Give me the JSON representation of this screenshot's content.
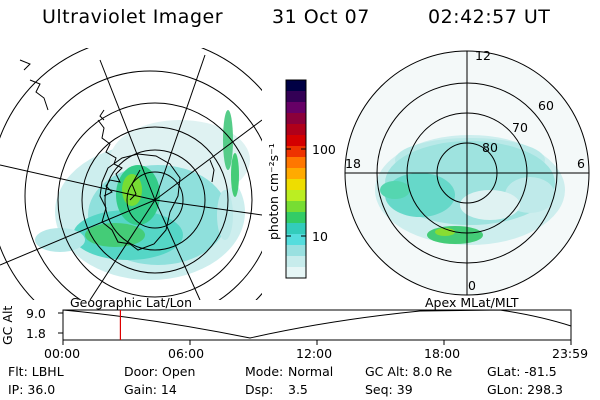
{
  "header": {
    "instrument": "Ultraviolet Imager",
    "date": "31 Oct 07",
    "time": "02:42:57 UT"
  },
  "colorbar": {
    "unit_label": "photon cm⁻²s⁻¹",
    "ticks": [
      "100",
      "10"
    ],
    "colors": [
      "#000044",
      "#330055",
      "#660066",
      "#8b003a",
      "#b0001a",
      "#d40000",
      "#ee3300",
      "#ff7700",
      "#ffaa00",
      "#eedd00",
      "#bbee22",
      "#77dd33",
      "#33cc66",
      "#33ccbb",
      "#55dddd",
      "#99e0e0",
      "#c7ecec",
      "#e6f6f6"
    ]
  },
  "right_map": {
    "mlt_labels": [
      "12",
      "18",
      "6",
      "0"
    ],
    "mlat_labels": [
      "60",
      "70",
      "80"
    ]
  },
  "timeline": {
    "y_axis_label": "GC Alt",
    "y_max": "9.0",
    "y_min": "1.8",
    "left_map_label": "Geographic Lat/Lon",
    "right_map_label": "Apex MLat/MLT",
    "x_ticks": [
      "00:00",
      "06:00",
      "12:00",
      "18:00",
      "23:59"
    ],
    "current_time_fraction": 0.113
  },
  "info": {
    "flt": "Flt: LBHL",
    "ip": "IP: 36.0",
    "door": "Door: Open",
    "gain": "Gain: 14",
    "mode_key": "Mode:",
    "mode_val": "Normal",
    "dsp_key": "Dsp:",
    "dsp_val": "3.5",
    "gcalt": "GC Alt: 8.0 Re",
    "seq": "Seq: 39",
    "glat": "GLat: -81.5",
    "glon": "GLon: 298.3"
  }
}
